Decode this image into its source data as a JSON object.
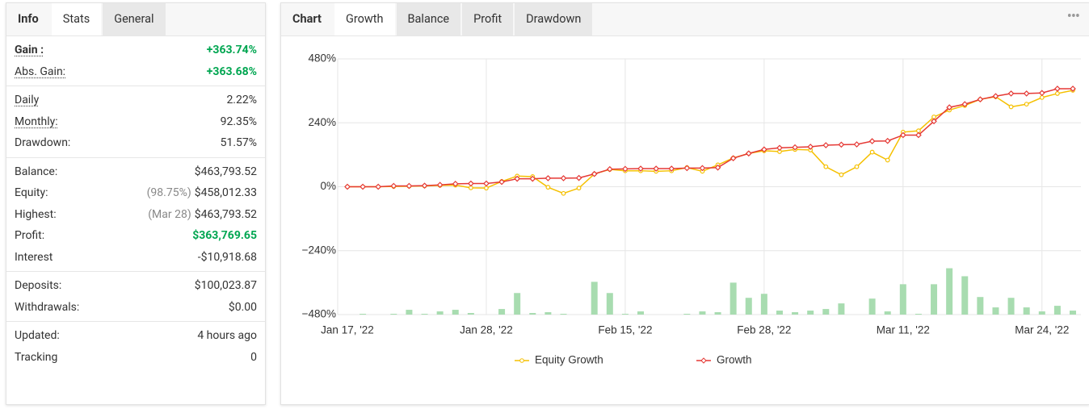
{
  "stats_panel": {
    "tabs": [
      "Info",
      "Stats",
      "General"
    ],
    "active_tab": 1,
    "groups": [
      [
        {
          "label": "Gain :",
          "value": "+363.74%",
          "bold": true,
          "underline": true,
          "color": "#00a651"
        },
        {
          "label": "Abs. Gain:",
          "value": "+363.68%",
          "underline": true,
          "color": "#00a651"
        }
      ],
      [
        {
          "label": "Daily",
          "value": "2.22%",
          "underline": true
        },
        {
          "label": "Monthly:",
          "value": "92.35%",
          "underline": true
        },
        {
          "label": "Drawdown:",
          "value": "51.57%"
        }
      ],
      [
        {
          "label": "Balance:",
          "value": "$463,793.52"
        },
        {
          "label": "Equity:",
          "note": "(98.75%)",
          "value": "$458,012.33"
        },
        {
          "label": "Highest:",
          "note": "(Mar 28)",
          "value": "$463,793.52"
        },
        {
          "label": "Profit:",
          "value": "$363,769.65",
          "color": "#00a651"
        },
        {
          "label": "Interest",
          "value": "-$10,918.68"
        }
      ],
      [
        {
          "label": "Deposits:",
          "value": "$100,023.87"
        },
        {
          "label": "Withdrawals:",
          "value": "$0.00"
        }
      ],
      [
        {
          "label": "Updated:",
          "value": "4 hours ago"
        },
        {
          "label": "Tracking",
          "value": "0"
        }
      ]
    ]
  },
  "chart_panel": {
    "tabs": [
      "Chart",
      "Growth",
      "Balance",
      "Profit",
      "Drawdown"
    ],
    "active_tab": 1,
    "menu": "•••"
  },
  "chart_data": {
    "type": "line",
    "categories": [
      "Jan 17, '22",
      null,
      null,
      null,
      null,
      null,
      null,
      null,
      null,
      "Jan 28, '22",
      null,
      null,
      null,
      null,
      null,
      null,
      null,
      null,
      "Feb 15, '22",
      null,
      null,
      null,
      null,
      null,
      null,
      null,
      null,
      "Feb 28, '22",
      null,
      null,
      null,
      null,
      null,
      null,
      null,
      null,
      "Mar 11, '22",
      null,
      null,
      null,
      null,
      null,
      null,
      null,
      null,
      "Mar 24, '22",
      null,
      null
    ],
    "ylim": [
      -480,
      480
    ],
    "yticks": [
      {
        "value": 480,
        "label": "480%"
      },
      {
        "value": 240,
        "label": "240%"
      },
      {
        "value": 0,
        "label": "0%"
      },
      {
        "value": -240,
        "label": "−240%"
      },
      {
        "value": -480,
        "label": "−480%"
      }
    ],
    "y2lim": [
      0,
      320
    ],
    "grid": true,
    "series": [
      {
        "name": "Equity Growth",
        "color": "#f5c000",
        "marker": "circle",
        "values": [
          0,
          0,
          0,
          1,
          2,
          3,
          5,
          6,
          -4,
          -5,
          20,
          40,
          38,
          -2,
          -25,
          -5,
          48,
          65,
          60,
          60,
          58,
          60,
          72,
          58,
          82,
          108,
          125,
          135,
          132,
          140,
          138,
          75,
          45,
          75,
          130,
          100,
          205,
          210,
          262,
          288,
          305,
          328,
          338,
          300,
          310,
          335,
          350,
          362
        ]
      },
      {
        "name": "Growth",
        "color": "#e53935",
        "marker": "diamond",
        "values": [
          0,
          0,
          0,
          3,
          3,
          4,
          7,
          11,
          12,
          12,
          18,
          30,
          30,
          32,
          32,
          33,
          48,
          66,
          67,
          68,
          68,
          68,
          70,
          70,
          72,
          107,
          125,
          140,
          146,
          148,
          150,
          156,
          158,
          159,
          171,
          172,
          194,
          194,
          246,
          298,
          310,
          328,
          340,
          350,
          350,
          352,
          368,
          368
        ]
      },
      {
        "type": "bar",
        "axis": "y2",
        "color": "#a8dcb0",
        "values": [
          0,
          1,
          0,
          1,
          6,
          1,
          4,
          6,
          2,
          0,
          7,
          27,
          2,
          3,
          1,
          0,
          41,
          27,
          1,
          4,
          0,
          0,
          1,
          4,
          3,
          40,
          21,
          26,
          5,
          3,
          5,
          7,
          14,
          0,
          20,
          4,
          38,
          1,
          38,
          58,
          48,
          22,
          9,
          21,
          9,
          4,
          11,
          5
        ]
      }
    ]
  }
}
